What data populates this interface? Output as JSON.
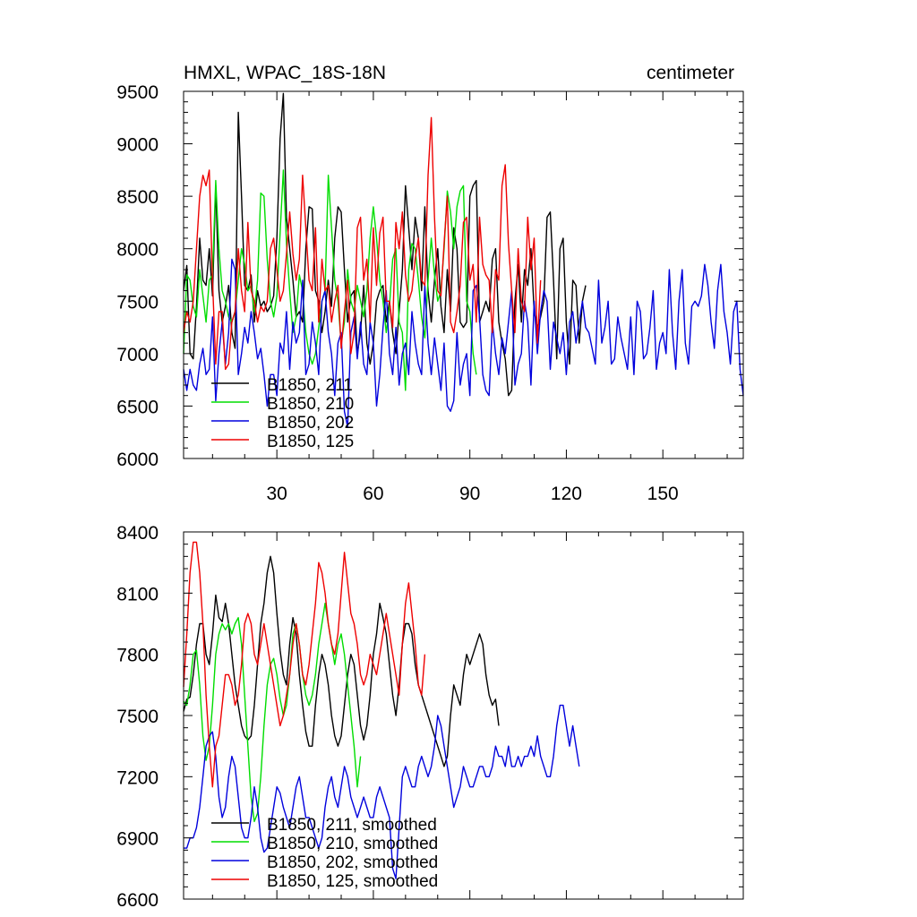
{
  "chart_data": [
    {
      "type": "line",
      "title": "HMXL, WPAC_18S-18N",
      "units": "centimeter",
      "xlabel": "",
      "ylabel": "",
      "xlim": [
        1,
        175
      ],
      "ylim": [
        6000,
        9500
      ],
      "xticks": [
        30,
        60,
        90,
        120,
        150
      ],
      "yticks": [
        6000,
        6500,
        7000,
        7500,
        8000,
        8500,
        9000,
        9500
      ],
      "legend_position": "bottom-left",
      "series": [
        {
          "name": "B1850, 211",
          "color": "#000000",
          "y": [
            7600,
            7840,
            7000,
            6950,
            7450,
            8100,
            7700,
            7650,
            8000,
            7550,
            8600,
            7600,
            7300,
            7450,
            7650,
            7200,
            7050,
            9300,
            8500,
            7650,
            7600,
            7750,
            7300,
            7600,
            7450,
            7500,
            7400,
            7450,
            7550,
            8100,
            9050,
            9480,
            8300,
            8000,
            7700,
            7350,
            7400,
            7300,
            8000,
            8400,
            8380,
            7600,
            7500,
            7200,
            7400,
            7700,
            7450,
            8100,
            8400,
            8350,
            7800,
            7300,
            7550,
            7600,
            7000,
            7200,
            7650,
            7100,
            6900,
            7100,
            7500,
            7600,
            7650,
            7300,
            7500,
            7200,
            7000,
            7400,
            7800,
            8600,
            8200,
            7800,
            8300,
            8100,
            7600,
            8400,
            7600,
            7300,
            7700,
            8000,
            7450,
            7200,
            7800,
            7400,
            8200,
            8000,
            7300,
            7250,
            7300,
            8500,
            8600,
            8650,
            7300,
            7400,
            7500,
            7400,
            7900,
            8000,
            7300,
            7100,
            6950,
            6600,
            6650,
            7500,
            7850,
            7300,
            7800,
            7650,
            8000,
            7400,
            7250,
            7350,
            7500,
            8300,
            8350,
            7700,
            6950,
            8000,
            8100,
            7300,
            6900,
            7700,
            7650,
            7100,
            7500,
            7650
          ]
        },
        {
          "name": "B1850, 210",
          "color": "#00dd00",
          "y": [
            7000,
            7750,
            7700,
            7450,
            7350,
            7800,
            7550,
            7300,
            7700,
            7750,
            8650,
            8000,
            7600,
            7500,
            7350,
            7300,
            7400,
            7700,
            8000,
            7850,
            7600,
            7650,
            7400,
            7700,
            8530,
            8500,
            7900,
            7500,
            7350,
            7550,
            8150,
            8750,
            8050,
            7600,
            7200,
            7350,
            7750,
            7600,
            7200,
            7000,
            6900,
            7000,
            7250,
            7500,
            7600,
            8700,
            8200,
            7700,
            7500,
            7100,
            7300,
            7800,
            7500,
            7400,
            7650,
            7500,
            7350,
            7600,
            8100,
            8400,
            8100,
            7700,
            7500,
            7200,
            7450,
            7900,
            8000,
            7300,
            7200,
            6650,
            7800,
            8050,
            8000,
            7700,
            7350,
            7150,
            7700,
            8100,
            7750,
            7500,
            7600,
            8000,
            8550,
            8350,
            8000,
            8400,
            8550,
            8600,
            7500,
            7400,
            7000,
            6800
          ]
        },
        {
          "name": "B1850, 202",
          "color": "#0000dd",
          "y": [
            6850,
            6650,
            6850,
            6700,
            6650,
            6900,
            7050,
            6800,
            6850,
            7350,
            6550,
            7000,
            7300,
            6900,
            7200,
            7900,
            7800,
            6800,
            7000,
            7250,
            7100,
            7400,
            7200,
            6950,
            7050,
            6800,
            6500,
            6800,
            6800,
            6600,
            7100,
            7000,
            7400,
            6850,
            7300,
            7100,
            7200,
            7700,
            6800,
            6900,
            7300,
            7100,
            6800,
            7500,
            7600,
            7200,
            7000,
            6600,
            7100,
            7200,
            6450,
            6300,
            7200,
            7350,
            6950,
            7300,
            6900,
            6800,
            7300,
            7100,
            6500,
            6800,
            7250,
            7600,
            7000,
            6800,
            7250,
            6700,
            7000,
            7100,
            6800,
            7400,
            7100,
            6900,
            6800,
            7650,
            7100,
            6800,
            7150,
            6900,
            6650,
            7100,
            6500,
            6450,
            6550,
            7200,
            6700,
            6900,
            7000,
            6600,
            7600,
            7650,
            7350,
            6800,
            6650,
            6600,
            7300,
            7000,
            6800,
            7150,
            7000,
            7300,
            7600,
            6700,
            6900,
            7000,
            7500,
            7300,
            6700,
            7500,
            7000,
            7400,
            7600,
            7500,
            6850,
            7300,
            7150,
            7000,
            7200,
            6800,
            7300,
            7400,
            7100,
            7300,
            7500,
            7250,
            7200,
            7050,
            6900,
            7700,
            7100,
            7250,
            7500,
            6900,
            6950,
            7350,
            7150,
            7000,
            6850,
            7350,
            6800,
            7500,
            7400,
            6950,
            7000,
            7250,
            7600,
            6850,
            7100,
            7200,
            7000,
            7800,
            7200,
            6850,
            7500,
            7800,
            7100,
            6900,
            7450,
            7500,
            7450,
            7550,
            7850,
            7650,
            7300,
            7050,
            7600,
            7850,
            7400,
            7200,
            6900,
            7400,
            7500,
            6850,
            6600
          ]
        },
        {
          "name": "B1850, 125",
          "color": "#ee0000",
          "y": [
            7200,
            7400,
            7300,
            7500,
            8000,
            8500,
            8700,
            8600,
            8750,
            7700,
            6900,
            7400,
            7400,
            6850,
            6900,
            7300,
            7400,
            8000,
            7600,
            7400,
            8250,
            7600,
            7500,
            7300,
            7450,
            7400,
            7500,
            8000,
            8100,
            7800,
            7500,
            7600,
            7950,
            8350,
            7950,
            7700,
            7900,
            8700,
            8200,
            7700,
            7600,
            8200,
            7300,
            7900,
            7600,
            7650,
            7300,
            7500,
            7650,
            7050,
            7400,
            7700,
            7000,
            7200,
            8200,
            8300,
            7700,
            7900,
            7300,
            8200,
            7650,
            8150,
            8300,
            7500,
            7500,
            7250,
            8250,
            8000,
            8350,
            7750,
            7500,
            7600,
            7900,
            8100,
            7700,
            7650,
            8700,
            9250,
            8300,
            7600,
            7550,
            8050,
            8500,
            7300,
            7200,
            7400,
            7650,
            8250,
            8300,
            7700,
            7850,
            7300,
            8300,
            7850,
            7750,
            7700,
            7200,
            7800,
            7700,
            8600,
            8800,
            8050,
            7600,
            7200,
            8000,
            7500,
            7400,
            8300,
            7800,
            8100,
            7100,
            7700
          ]
        }
      ]
    },
    {
      "type": "line",
      "title": "",
      "xlabel": "",
      "ylabel": "",
      "xlim": [
        1,
        175
      ],
      "ylim": [
        6600,
        8400
      ],
      "xticks": [
        30,
        60,
        90,
        120,
        150
      ],
      "yticks": [
        6600,
        6900,
        7200,
        7500,
        7800,
        8100,
        8400
      ],
      "legend_position": "bottom-left",
      "series": [
        {
          "name": "B1850, 211, smoothed",
          "color": "#000000",
          "y": [
            7520,
            7580,
            7590,
            7700,
            7850,
            7950,
            7950,
            7800,
            7750,
            7900,
            8090,
            7980,
            7960,
            8050,
            7950,
            7800,
            7650,
            7550,
            7450,
            7400,
            7380,
            7400,
            7550,
            7750,
            7950,
            8050,
            8200,
            8280,
            8200,
            8000,
            7820,
            7700,
            7650,
            7850,
            7980,
            7900,
            7700,
            7550,
            7420,
            7350,
            7350,
            7550,
            7700,
            7800,
            7750,
            7650,
            7500,
            7400,
            7350,
            7400,
            7550,
            7700,
            7800,
            7750,
            7600,
            7450,
            7380,
            7450,
            7600,
            7800,
            7900,
            8050,
            7980,
            7900,
            7750,
            7600,
            7500,
            7650,
            7850,
            7950,
            7950,
            7900,
            7750,
            7650,
            7600,
            7550,
            7500,
            7450,
            7400,
            7350,
            7300,
            7250,
            7300,
            7500,
            7650,
            7600,
            7550,
            7700,
            7800,
            7750,
            7800,
            7850,
            7900,
            7850,
            7700,
            7600,
            7550,
            7580,
            7450
          ]
        },
        {
          "name": "B1850, 210, smoothed",
          "color": "#00dd00",
          "y": [
            7570,
            7550,
            7650,
            7800,
            7820,
            7650,
            7400,
            7280,
            7350,
            7550,
            7800,
            7900,
            7950,
            7920,
            7950,
            7900,
            7950,
            7980,
            7850,
            7600,
            7350,
            7100,
            6980,
            7020,
            7200,
            7450,
            7650,
            7750,
            7780,
            7700,
            7580,
            7500,
            7550,
            7700,
            7900,
            7950,
            7850,
            7700,
            7600,
            7550,
            7600,
            7700,
            7850,
            7950,
            8050,
            7950,
            7850,
            7750,
            7850,
            7900,
            7800,
            7650,
            7500,
            7350,
            7150,
            7300
          ]
        },
        {
          "name": "B1850, 202, smoothed",
          "color": "#0000dd",
          "y": [
            6850,
            6850,
            6900,
            6900,
            6950,
            7050,
            7200,
            7350,
            7400,
            7420,
            7300,
            7100,
            7000,
            7050,
            7200,
            7300,
            7250,
            7100,
            6950,
            6900,
            6900,
            7000,
            7150,
            7050,
            6900,
            6830,
            6850,
            6950,
            7050,
            7150,
            7120,
            7050,
            7000,
            6950,
            7050,
            7150,
            7200,
            7100,
            7000,
            7000,
            6950,
            6900,
            6850,
            6900,
            7050,
            7150,
            7200,
            7100,
            7050,
            7150,
            7250,
            7200,
            7100,
            7050,
            7000,
            7050,
            7100,
            7050,
            7000,
            7000,
            7100,
            7150,
            7100,
            7050,
            7000,
            6750,
            6700,
            6950,
            7200,
            7250,
            7200,
            7150,
            7150,
            7250,
            7300,
            7250,
            7200,
            7250,
            7350,
            7500,
            7450,
            7350,
            7250,
            7150,
            7050,
            7100,
            7150,
            7250,
            7200,
            7150,
            7150,
            7200,
            7250,
            7250,
            7200,
            7200,
            7250,
            7350,
            7300,
            7300,
            7250,
            7350,
            7250,
            7250,
            7300,
            7250,
            7300,
            7300,
            7350,
            7300,
            7400,
            7300,
            7250,
            7200,
            7200,
            7300,
            7450,
            7550,
            7550,
            7450,
            7350,
            7450,
            7350,
            7250
          ]
        },
        {
          "name": "B1850, 125, smoothed",
          "color": "#ee0000",
          "y": [
            7640,
            7900,
            8200,
            8350,
            8350,
            8200,
            7950,
            7600,
            7350,
            7150,
            7350,
            7400,
            7550,
            7700,
            7700,
            7650,
            7550,
            7600,
            7750,
            7950,
            8000,
            7950,
            7800,
            7750,
            7850,
            7950,
            7850,
            7750,
            7650,
            7550,
            7450,
            7500,
            7600,
            7700,
            7850,
            7950,
            7850,
            7700,
            7650,
            7750,
            7900,
            8050,
            8250,
            8200,
            8100,
            7950,
            7850,
            7800,
            7900,
            8100,
            8300,
            8150,
            8000,
            7950,
            7850,
            7700,
            7650,
            7700,
            7800,
            7750,
            7700,
            7800,
            7900,
            8000,
            7900,
            7800,
            7700,
            7600,
            7850,
            8050,
            8150,
            8000,
            7850,
            7650,
            7600,
            7800
          ]
        }
      ]
    }
  ]
}
